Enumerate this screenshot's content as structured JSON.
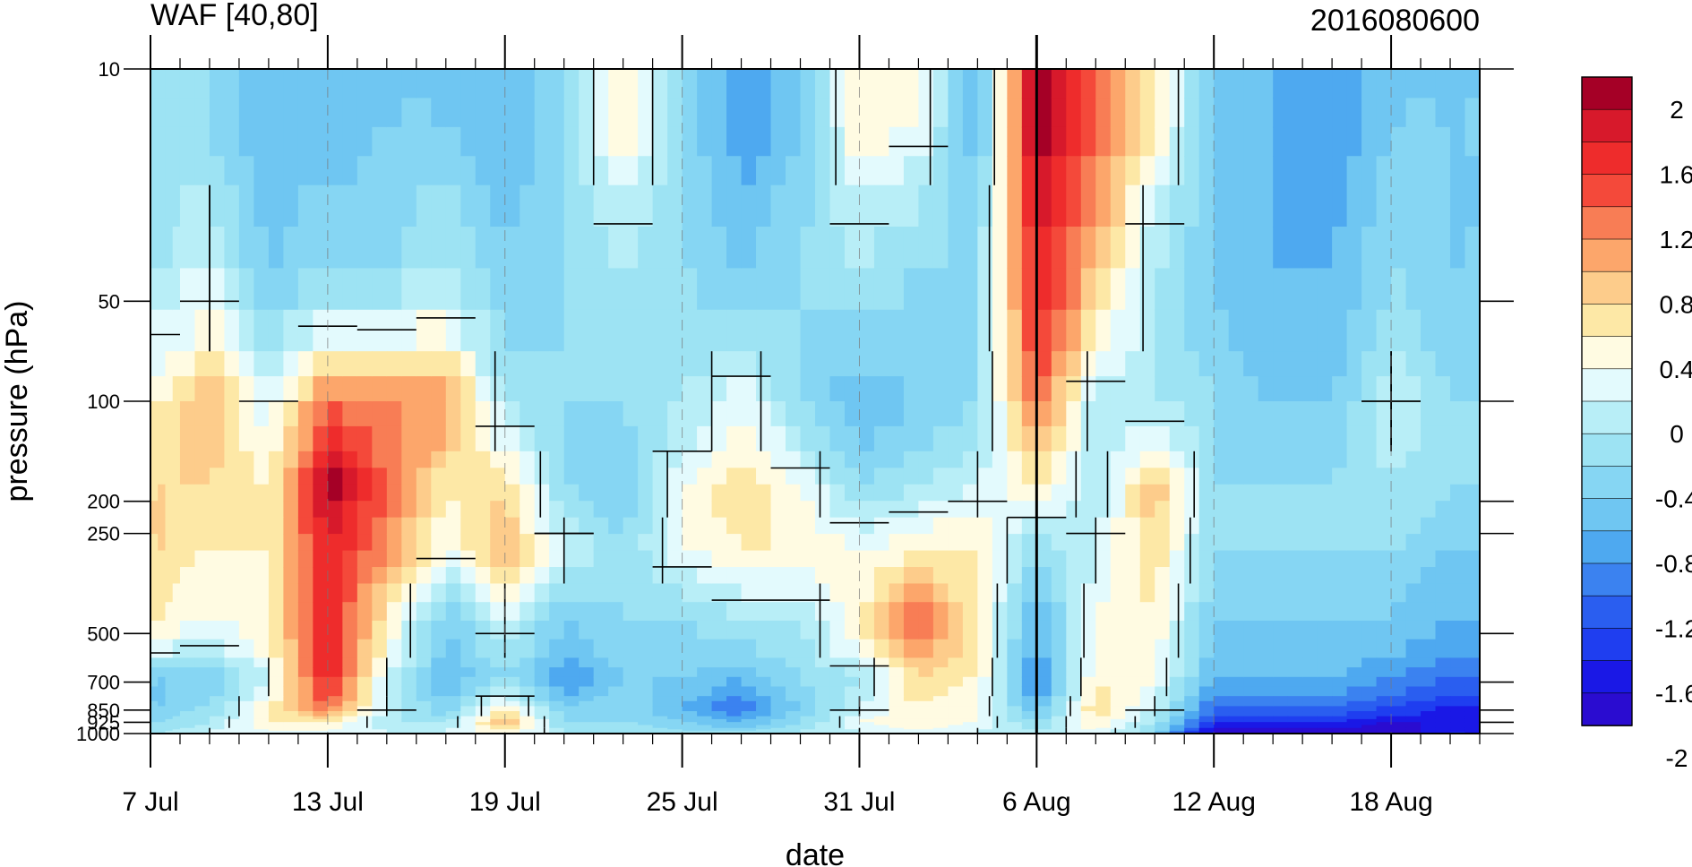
{
  "chart_data": {
    "type": "heatmap",
    "subtype": "filled-contour",
    "title": "WAF [40,80]",
    "subtitle": "2016080600",
    "xlabel": "date",
    "ylabel": "pressure (hPa)",
    "x_range": [
      "2016-07-07",
      "2016-08-21"
    ],
    "x_ticks": [
      "7 Jul",
      "13 Jul",
      "19 Jul",
      "25 Jul",
      "31 Jul",
      "6 Aug",
      "12 Aug",
      "18 Aug"
    ],
    "y_scale": "log",
    "y_inverted": true,
    "y_range": [
      1000,
      10
    ],
    "y_ticks": [
      "10",
      "50",
      "100",
      "200",
      "250",
      "500",
      "700",
      "850",
      "925",
      "1000"
    ],
    "marker_date": "2016-08-06",
    "colorbar": {
      "labels": [
        "2",
        "1.6",
        "1.2",
        "0.8",
        "0.4",
        "0",
        "-0.4",
        "-0.8",
        "-1.2",
        "-1.6",
        "-2"
      ],
      "colors": [
        "#a50026",
        "#d7192b",
        "#ee2c2c",
        "#f4493a",
        "#f87d55",
        "#fca66b",
        "#fdcc8b",
        "#fde8a6",
        "#fffbe2",
        "#e3fafd",
        "#b8eef7",
        "#9de3f3",
        "#86d6f3",
        "#6fc6f2",
        "#4ea9f0",
        "#3b82f0",
        "#2a5ef0",
        "#1f3ef0",
        "#1a18e6",
        "#2a0cd0"
      ]
    },
    "series": [
      {
        "x": "2016-07-07",
        "profile": [
          -0.4,
          -0.2,
          0.4,
          0.6,
          0.6,
          0.4,
          -0.6,
          -0.6,
          -0.4,
          -0.2
        ]
      },
      {
        "x": "2016-07-09",
        "profile": [
          -0.4,
          0.0,
          0.8,
          0.6,
          0.4,
          0.2,
          -0.6,
          -0.4,
          -0.2,
          0.0
        ]
      },
      {
        "x": "2016-07-11",
        "profile": [
          -0.8,
          -0.6,
          0.0,
          0.4,
          0.4,
          0.4,
          0.0,
          0.4,
          0.4,
          0.2
        ]
      },
      {
        "x": "2016-07-13",
        "profile": [
          -0.8,
          -0.4,
          1.2,
          2.0,
          1.6,
          1.6,
          1.6,
          1.2,
          0.4,
          0.2
        ]
      },
      {
        "x": "2016-07-15",
        "profile": [
          -0.6,
          -0.4,
          1.0,
          1.2,
          1.0,
          0.4,
          0.0,
          0.0,
          -0.2,
          0.0
        ]
      },
      {
        "x": "2016-07-17",
        "profile": [
          -0.6,
          -0.2,
          1.0,
          0.4,
          0.2,
          -0.6,
          -0.8,
          -0.6,
          -0.2,
          0.0
        ]
      },
      {
        "x": "2016-07-19",
        "profile": [
          -0.8,
          -0.6,
          -0.2,
          0.6,
          0.8,
          0.0,
          -0.4,
          0.4,
          0.8,
          0.4
        ]
      },
      {
        "x": "2016-07-21",
        "profile": [
          -0.4,
          -0.4,
          -0.4,
          -0.4,
          0.0,
          -0.6,
          -1.0,
          -0.6,
          -0.4,
          -0.2
        ]
      },
      {
        "x": "2016-07-23",
        "profile": [
          0.4,
          -0.2,
          -0.4,
          -0.6,
          -0.4,
          -0.4,
          -0.6,
          -0.4,
          -0.4,
          -0.2
        ]
      },
      {
        "x": "2016-07-25",
        "profile": [
          -0.4,
          -0.4,
          -0.2,
          0.2,
          0.2,
          -0.4,
          -0.6,
          -0.8,
          -0.6,
          -0.4
        ]
      },
      {
        "x": "2016-07-27",
        "profile": [
          -1.0,
          -0.6,
          0.2,
          0.6,
          0.4,
          -0.2,
          -0.8,
          -1.2,
          -0.8,
          -0.4
        ]
      },
      {
        "x": "2016-07-29",
        "profile": [
          -0.6,
          -0.4,
          -0.4,
          0.2,
          0.4,
          -0.2,
          -0.4,
          -0.6,
          -0.4,
          -0.2
        ]
      },
      {
        "x": "2016-07-31",
        "profile": [
          0.4,
          -0.2,
          -0.8,
          -0.4,
          0.2,
          0.4,
          -0.2,
          0.0,
          0.2,
          0.0
        ]
      },
      {
        "x": "2016-08-02",
        "profile": [
          0.2,
          -0.4,
          -0.6,
          -0.2,
          0.4,
          1.2,
          0.6,
          0.4,
          0.4,
          0.2
        ]
      },
      {
        "x": "2016-08-04",
        "profile": [
          -0.8,
          -0.4,
          -0.4,
          0.0,
          0.4,
          0.4,
          0.4,
          0.2,
          0.2,
          0.0
        ]
      },
      {
        "x": "2016-08-06",
        "profile": [
          2.0,
          1.6,
          1.2,
          0.4,
          -0.4,
          -0.8,
          -1.2,
          -0.8,
          -0.4,
          -0.2
        ]
      },
      {
        "x": "2016-08-08",
        "profile": [
          1.2,
          0.8,
          -0.2,
          -0.2,
          0.0,
          0.2,
          0.4,
          0.6,
          0.4,
          0.2
        ]
      },
      {
        "x": "2016-08-10",
        "profile": [
          0.4,
          -0.2,
          -0.2,
          0.8,
          0.6,
          0.4,
          0.2,
          0.0,
          -0.2,
          -0.4
        ]
      },
      {
        "x": "2016-08-12",
        "profile": [
          -0.6,
          -0.6,
          -0.4,
          -0.4,
          -0.4,
          -0.6,
          -0.8,
          -1.2,
          -1.6,
          -2.0
        ]
      },
      {
        "x": "2016-08-14",
        "profile": [
          -0.8,
          -0.8,
          -0.6,
          -0.4,
          -0.4,
          -0.6,
          -0.8,
          -1.2,
          -1.6,
          -2.0
        ]
      },
      {
        "x": "2016-08-16",
        "profile": [
          -1.0,
          -0.8,
          -0.6,
          -0.4,
          -0.4,
          -0.6,
          -0.8,
          -1.2,
          -1.6,
          -2.0
        ]
      },
      {
        "x": "2016-08-18",
        "profile": [
          -0.6,
          -0.4,
          0.0,
          -0.2,
          -0.4,
          -0.6,
          -1.0,
          -1.4,
          -1.8,
          -2.0
        ]
      },
      {
        "x": "2016-08-20",
        "profile": [
          -0.6,
          -0.6,
          -0.4,
          -0.4,
          -0.6,
          -0.8,
          -1.2,
          -1.6,
          -1.8,
          -1.6
        ]
      }
    ]
  }
}
